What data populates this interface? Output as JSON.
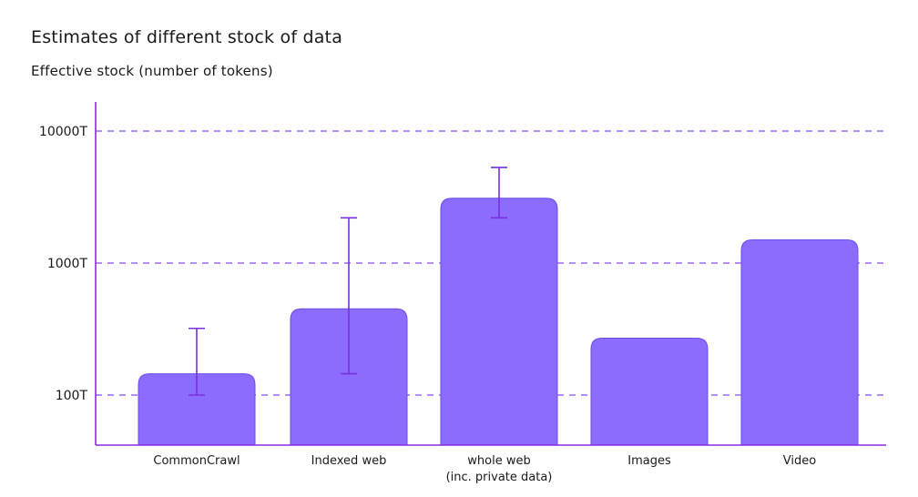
{
  "chart_data": {
    "type": "bar",
    "title": "Estimates of different stock of data",
    "subtitle": "Effective stock (number of tokens)",
    "yscale": "log",
    "ylim": [
      45,
      15000
    ],
    "yticks": [
      100,
      1000,
      10000
    ],
    "ytick_labels": [
      "100T",
      "1000T",
      "10000T"
    ],
    "grid": true,
    "categories": [
      [
        "CommonCrawl"
      ],
      [
        "Indexed web"
      ],
      [
        "whole web",
        "(inc. private data)"
      ],
      [
        "Images"
      ],
      [
        "Video"
      ]
    ],
    "values": [
      145,
      450,
      3100,
      270,
      1500
    ],
    "error_low": [
      100,
      145,
      2200,
      null,
      null
    ],
    "error_high": [
      320,
      2200,
      5300,
      null,
      null
    ]
  },
  "colors": {
    "bar": "#8b6cff",
    "bar_stroke": "#6b4ee6",
    "axis": "#8a2be2",
    "grid": "#8a4cf0",
    "errorbar": "#7a2fe0",
    "text": "#1a1a1a"
  }
}
